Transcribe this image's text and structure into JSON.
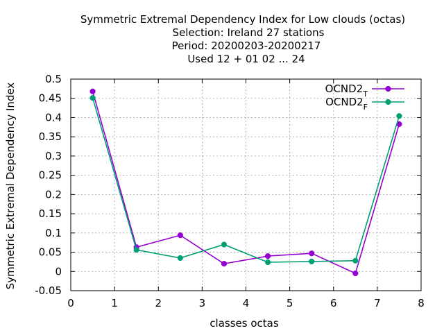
{
  "chart_data": {
    "type": "line",
    "title_lines": [
      "Symmetric Extremal Dependency Index  for Low clouds (octas)",
      "Selection: Ireland     27 stations",
      "Period: 20200203-20200217",
      "Used  12 + 01 02 ... 24"
    ],
    "xlabel": "classes octas",
    "ylabel": "Symmetric Extremal Dependency Index",
    "xlim": [
      0,
      8
    ],
    "ylim": [
      -0.05,
      0.5
    ],
    "xticks": [
      "0",
      "1",
      "2",
      "3",
      "4",
      "5",
      "6",
      "7",
      "8"
    ],
    "yticks": [
      "-0.05",
      "0",
      "0.05",
      "0.1",
      "0.15",
      "0.2",
      "0.25",
      "0.3",
      "0.35",
      "0.4",
      "0.45",
      "0.5"
    ],
    "grid": true,
    "legend_position": "top-right",
    "x": [
      0.5,
      1.5,
      2.5,
      3.5,
      4.5,
      5.5,
      6.5,
      7.5
    ],
    "series": [
      {
        "name": "OCND2",
        "subscript": "T",
        "color": "#9400d3",
        "values": [
          0.468,
          0.063,
          0.094,
          0.02,
          0.04,
          0.047,
          -0.005,
          0.383
        ]
      },
      {
        "name": "OCND2",
        "subscript": "F",
        "color": "#009e73",
        "values": [
          0.451,
          0.056,
          0.035,
          0.07,
          0.024,
          0.026,
          0.028,
          0.404
        ]
      }
    ]
  }
}
